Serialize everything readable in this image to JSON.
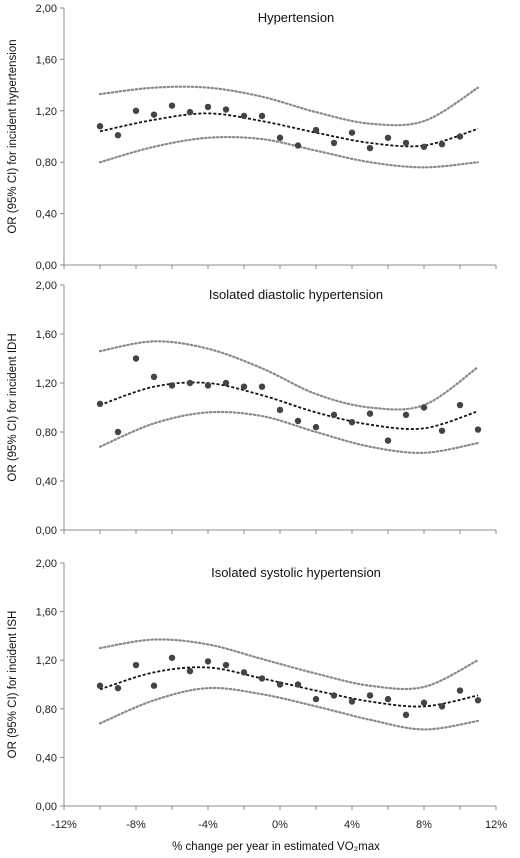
{
  "chart_data": [
    {
      "type": "scatter",
      "title": "Hypertension",
      "ylabel": "OR (95% CI) for incident hypertension",
      "xlabel": "",
      "xlim": [
        -12,
        12
      ],
      "ylim": [
        0,
        2
      ],
      "points": {
        "x": [
          -10,
          -9,
          -8,
          -7,
          -6,
          -5,
          -4,
          -3,
          -2,
          -1,
          0,
          1,
          2,
          3,
          4,
          5,
          6,
          7,
          8,
          9,
          10
        ],
        "y": [
          1.08,
          1.01,
          1.2,
          1.17,
          1.24,
          1.19,
          1.23,
          1.21,
          1.16,
          1.16,
          0.99,
          0.93,
          1.05,
          0.95,
          1.03,
          0.91,
          0.99,
          0.95,
          0.92,
          0.94,
          1.0
        ]
      },
      "fit": [
        1.04,
        1.13,
        1.18,
        1.12,
        1.03,
        0.95,
        0.93,
        1.06
      ],
      "upper": [
        1.33,
        1.38,
        1.38,
        1.31,
        1.19,
        1.1,
        1.12,
        1.38
      ],
      "lower": [
        0.8,
        0.92,
        0.99,
        0.98,
        0.89,
        0.8,
        0.76,
        0.8
      ],
      "curve_x": [
        -10,
        -7,
        -4,
        -1,
        2,
        5,
        8,
        11
      ],
      "grid": false
    },
    {
      "type": "scatter",
      "title": "Isolated diastolic hypertension",
      "ylabel": "OR (95% CI) for incident IDH",
      "xlabel": "",
      "xlim": [
        -12,
        12
      ],
      "ylim": [
        0,
        2
      ],
      "points": {
        "x": [
          -10,
          -9,
          -8,
          -7,
          -6,
          -5,
          -4,
          -3,
          -2,
          -1,
          0,
          1,
          2,
          3,
          4,
          5,
          6,
          7,
          8,
          9,
          10,
          11
        ],
        "y": [
          1.03,
          0.8,
          1.4,
          1.25,
          1.18,
          1.2,
          1.18,
          1.2,
          1.17,
          1.17,
          0.98,
          0.89,
          0.84,
          0.94,
          0.88,
          0.95,
          0.73,
          0.94,
          1.0,
          0.81,
          1.02,
          0.82
        ]
      },
      "fit": [
        1.02,
        1.17,
        1.2,
        1.1,
        0.96,
        0.86,
        0.83,
        0.97
      ],
      "upper": [
        1.46,
        1.54,
        1.48,
        1.32,
        1.11,
        1.0,
        1.02,
        1.33
      ],
      "lower": [
        0.68,
        0.87,
        0.96,
        0.93,
        0.8,
        0.68,
        0.63,
        0.71
      ],
      "curve_x": [
        -10,
        -7,
        -4,
        -1,
        2,
        5,
        8,
        11
      ],
      "grid": false
    },
    {
      "type": "scatter",
      "title": "Isolated systolic hypertension",
      "ylabel": "OR (95% CI) for incident ISH",
      "xlabel": "% change per year in estimated VO₂max",
      "xlim": [
        -12,
        12
      ],
      "ylim": [
        0,
        2
      ],
      "xticks": [
        "-12%",
        "-8%",
        "-4%",
        "0%",
        "4%",
        "8%",
        "12%"
      ],
      "points": {
        "x": [
          -10,
          -9,
          -8,
          -7,
          -6,
          -5,
          -4,
          -3,
          -2,
          -1,
          0,
          1,
          2,
          3,
          4,
          5,
          6,
          7,
          8,
          9,
          10,
          11
        ],
        "y": [
          0.99,
          0.97,
          1.16,
          0.99,
          1.22,
          1.11,
          1.19,
          1.16,
          1.1,
          1.05,
          1.0,
          1.0,
          0.88,
          0.91,
          0.86,
          0.91,
          0.88,
          0.75,
          0.85,
          0.82,
          0.95,
          0.87
        ]
      },
      "fit": [
        0.96,
        1.1,
        1.14,
        1.05,
        0.95,
        0.86,
        0.82,
        0.91
      ],
      "upper": [
        1.3,
        1.37,
        1.33,
        1.21,
        1.09,
        0.99,
        0.98,
        1.2
      ],
      "lower": [
        0.68,
        0.87,
        0.97,
        0.92,
        0.82,
        0.71,
        0.63,
        0.7
      ],
      "curve_x": [
        -10,
        -7,
        -4,
        -1,
        2,
        5,
        8,
        11
      ],
      "grid": false
    }
  ],
  "yticks": [
    "0,00",
    "0,40",
    "0,80",
    "1,20",
    "1,60",
    "2,00"
  ],
  "colors": {
    "points": "#444444",
    "fit": "#111111",
    "ci": "#8a8a8a",
    "axis": "#8c8c8c"
  }
}
